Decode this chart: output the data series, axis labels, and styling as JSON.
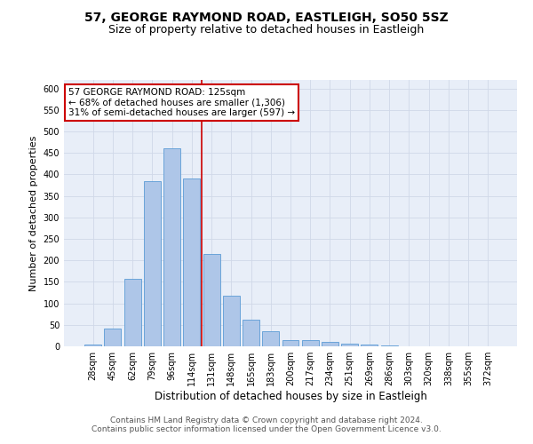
{
  "title1": "57, GEORGE RAYMOND ROAD, EASTLEIGH, SO50 5SZ",
  "title2": "Size of property relative to detached houses in Eastleigh",
  "xlabel": "Distribution of detached houses by size in Eastleigh",
  "ylabel": "Number of detached properties",
  "categories": [
    "28sqm",
    "45sqm",
    "62sqm",
    "79sqm",
    "96sqm",
    "114sqm",
    "131sqm",
    "148sqm",
    "165sqm",
    "183sqm",
    "200sqm",
    "217sqm",
    "234sqm",
    "251sqm",
    "269sqm",
    "286sqm",
    "303sqm",
    "320sqm",
    "338sqm",
    "355sqm",
    "372sqm"
  ],
  "values": [
    5,
    42,
    158,
    385,
    460,
    390,
    215,
    118,
    62,
    35,
    15,
    14,
    10,
    7,
    4,
    2,
    1,
    0,
    0,
    0,
    0
  ],
  "bar_color": "#aec6e8",
  "bar_edge_color": "#5b9bd5",
  "vline_x": 5.5,
  "vline_color": "#cc0000",
  "annotation_text": "57 GEORGE RAYMOND ROAD: 125sqm\n← 68% of detached houses are smaller (1,306)\n31% of semi-detached houses are larger (597) →",
  "annotation_box_color": "#ffffff",
  "annotation_box_edge": "#cc0000",
  "ylim": [
    0,
    620
  ],
  "yticks": [
    0,
    50,
    100,
    150,
    200,
    250,
    300,
    350,
    400,
    450,
    500,
    550,
    600
  ],
  "grid_color": "#d0d8e8",
  "bg_color": "#e8eef8",
  "fig_bg_color": "#ffffff",
  "footer1": "Contains HM Land Registry data © Crown copyright and database right 2024.",
  "footer2": "Contains public sector information licensed under the Open Government Licence v3.0.",
  "title1_fontsize": 10,
  "title2_fontsize": 9,
  "xlabel_fontsize": 8.5,
  "ylabel_fontsize": 8,
  "tick_fontsize": 7,
  "annotation_fontsize": 7.5,
  "footer_fontsize": 6.5
}
